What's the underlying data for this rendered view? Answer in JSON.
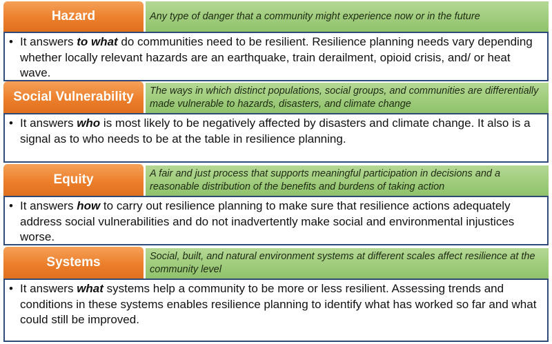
{
  "sections": [
    {
      "title": "Hazard",
      "definition": "Any type of danger that a community might experience now or in the future",
      "bullet": "•",
      "desc_pre": "It answers ",
      "desc_kw": "to what",
      "desc_post": " do communities need to be resilient. Resilience planning needs vary depending whether locally relevant hazards are an earthquake, train derailment, opioid crisis, and/ or heat wave."
    },
    {
      "title": "Social Vulnerability",
      "definition": "The ways in which distinct populations, social groups, and communities are differentially made vulnerable to hazards, disasters, and climate change",
      "bullet": "•",
      "desc_pre": "It answers ",
      "desc_kw": "who",
      "desc_post": " is most likely to be negatively affected by disasters and climate change. It also is a signal as to who needs to be at the table in resilience planning."
    },
    {
      "title": "Equity",
      "definition": "A fair and just process that supports meaningful participation in decisions and a reasonable distribution of the benefits and burdens of taking action",
      "bullet": "•",
      "desc_pre": "It answers ",
      "desc_kw": "how",
      "desc_post": " to carry out resilience planning to make sure that resilience actions adequately address social vulnerabilities and do not inadvertently make social and environmental injustices worse."
    },
    {
      "title": "Systems",
      "definition": "Social, built, and natural environment systems at different scales affect resilience at the community level",
      "bullet": "•",
      "desc_pre": "It answers ",
      "desc_kw": "what",
      "desc_post": " systems help a community to be more or less resilient. Assessing trends and conditions in these systems enables resilience planning to identify what has worked so far and what could still be improved."
    }
  ]
}
